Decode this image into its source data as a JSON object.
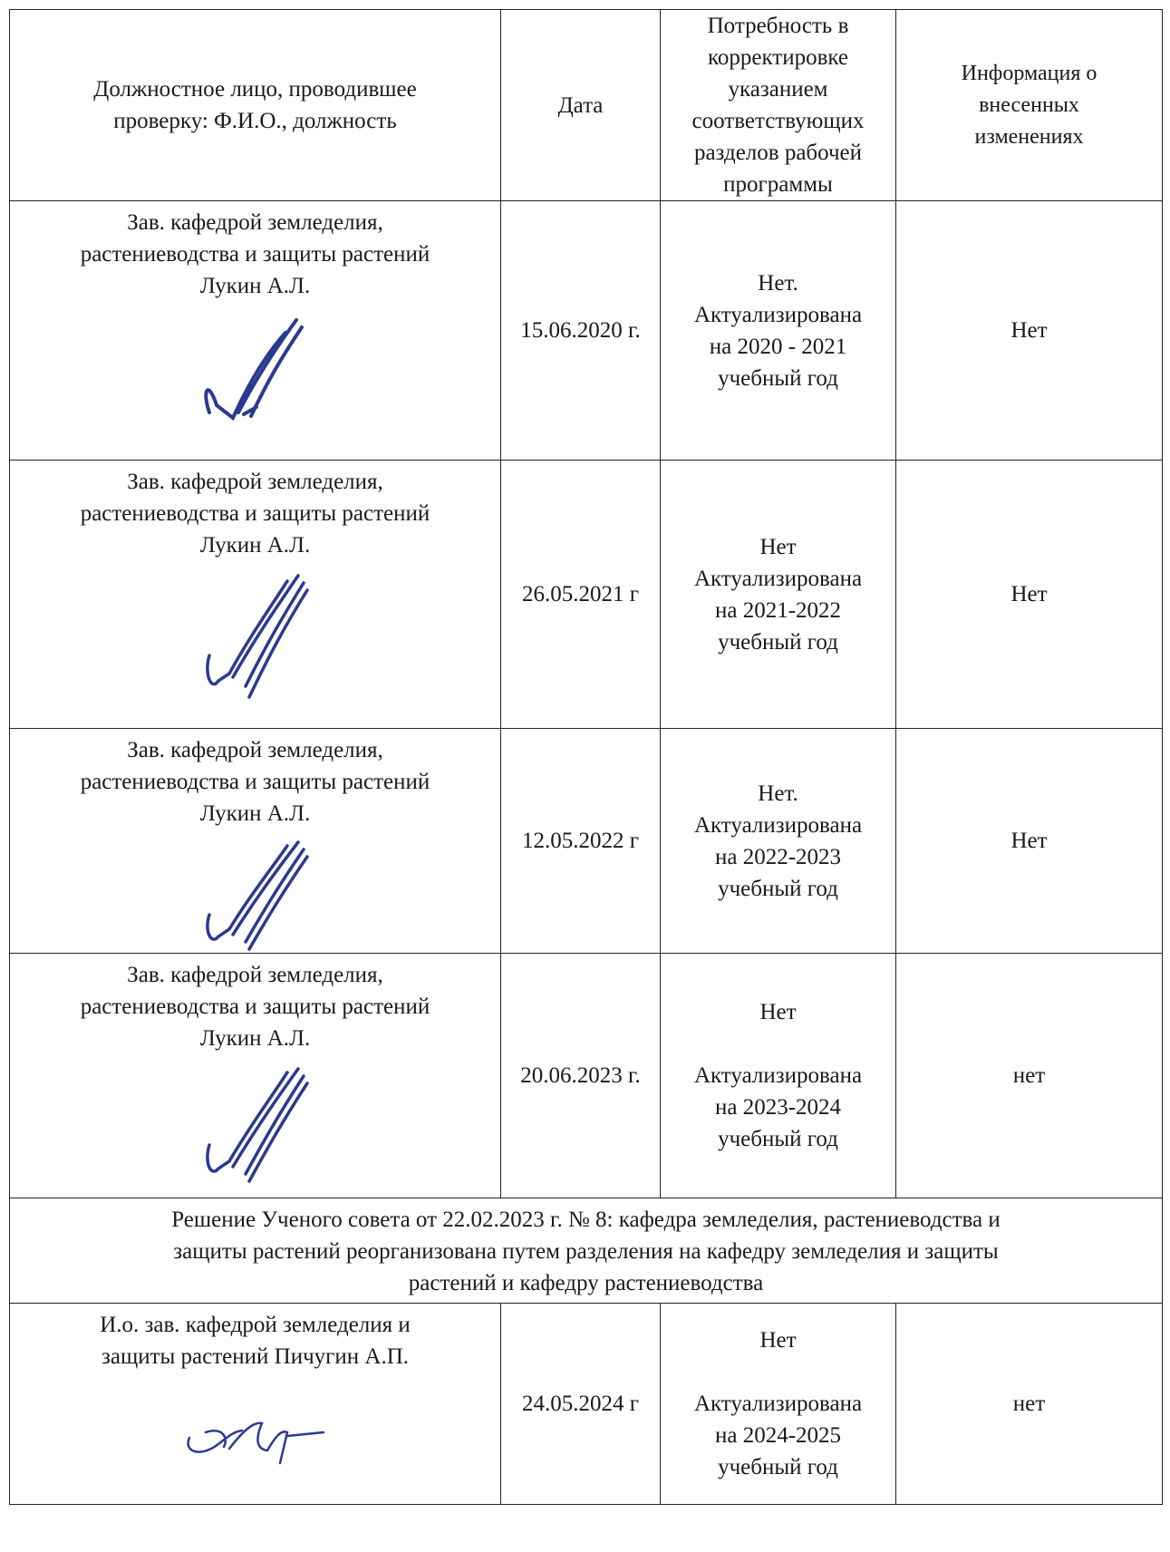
{
  "header": {
    "person_l1": "Должностное лицо, проводившее",
    "person_l2": "проверку: Ф.И.О., должность",
    "date": "Дата",
    "need_l1": "Потребность  в",
    "need_l2": "корректировке",
    "need_l3": "указанием",
    "need_l4": "соответствующих",
    "need_l5": "разделов рабочей",
    "need_l6": "программы",
    "info_l1": "Информация о",
    "info_l2": "внесенных",
    "info_l3": "изменениях"
  },
  "rows": [
    {
      "person_l1": "Зав. кафедрой земледелия,",
      "person_l2": "растениеводства и защиты растений",
      "person_l3": "Лукин А.Л.",
      "date": "15.06.2020 г.",
      "need_l1": "Нет.",
      "need_l2": "Актуализирована",
      "need_l3": "на 2020 - 2021",
      "need_l4": "учебный год",
      "info": "Нет"
    },
    {
      "person_l1": "Зав. кафедрой земледелия,",
      "person_l2": "растениеводства  и защиты растений",
      "person_l3": "Лукин А.Л.",
      "date": "26.05.2021 г",
      "need_l1": "Нет",
      "need_l2": "Актуализирована",
      "need_l3": "на 2021-2022",
      "need_l4": "учебный год",
      "info": "Нет"
    },
    {
      "person_l1": "Зав. кафедрой земледелия,",
      "person_l2": "растениеводства и защиты растений",
      "person_l3": "Лукин А.Л.",
      "date": "12.05.2022 г",
      "need_l1": "Нет.",
      "need_l2": "Актуализирована",
      "need_l3": "на 2022-2023",
      "need_l4": "учебный год",
      "info": "Нет"
    },
    {
      "person_l1": "Зав. кафедрой земледелия,",
      "person_l2": "растениеводства и защиты растений",
      "person_l3": "Лукин А.Л.",
      "date": "20.06.2023 г.",
      "need_l1": "Нет",
      "need_l2": "Актуализирована",
      "need_l3": "на  2023-2024",
      "need_l4": "учебный год",
      "info": "нет"
    }
  ],
  "decision": {
    "l1": "Решение Ученого совета от 22.02.2023 г. № 8: кафедра земледелия, растениеводства и",
    "l2": "защиты растений реорганизована путем разделения на кафедру земледелия и защиты",
    "l3": "растений и кафедру растениеводства"
  },
  "last_row": {
    "person_l1": "И.о. зав. кафедрой земледелия и",
    "person_l2": "защиты растений Пичугин А.П.",
    "date": "24.05.2024 г",
    "need_l1": "Нет",
    "need_l2": "Актуализирована",
    "need_l3": "на  2024-2025",
    "need_l4": "учебный год",
    "info": "нет"
  },
  "colors": {
    "signature_ink": "#2b3a8f",
    "border": "#222222"
  }
}
